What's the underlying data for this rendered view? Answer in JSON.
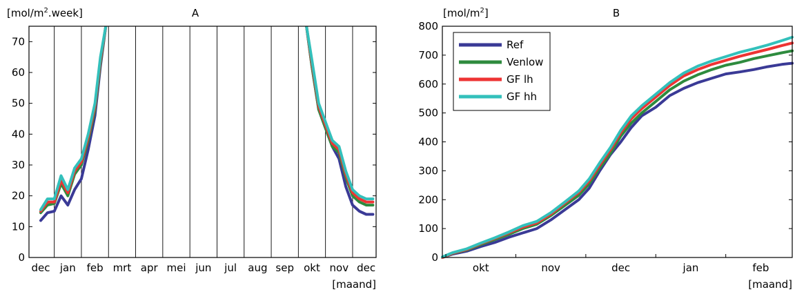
{
  "chart_data": [
    {
      "type": "line",
      "title": "A",
      "ylabel_prefix": "[mol/m",
      "ylabel_sup": "2",
      "ylabel_suffix": ".week]",
      "xlabel": "[maand]",
      "categories": [
        "dec",
        "jan",
        "feb",
        "mrt",
        "apr",
        "mei",
        "jun",
        "jul",
        "aug",
        "sep",
        "okt",
        "nov",
        "dec"
      ],
      "x_unit": "months since start of december",
      "ylim": [
        0,
        75
      ],
      "yticks": [
        0,
        10,
        20,
        30,
        40,
        50,
        60,
        70
      ],
      "grid": "vertical",
      "series": [
        {
          "color": "#3a3a96",
          "segments": [
            [
              [
                0.0,
                12
              ],
              [
                0.25,
                14.5
              ],
              [
                0.5,
                15
              ],
              [
                0.75,
                20
              ],
              [
                1.0,
                17
              ],
              [
                1.25,
                22
              ],
              [
                1.5,
                25.5
              ],
              [
                1.75,
                35
              ],
              [
                2.0,
                46
              ],
              [
                2.2,
                62
              ],
              [
                2.4,
                75
              ]
            ],
            [
              [
                9.8,
                75
              ],
              [
                10.0,
                62
              ],
              [
                10.25,
                48
              ],
              [
                10.5,
                42
              ],
              [
                10.75,
                36
              ],
              [
                11.0,
                32
              ],
              [
                11.25,
                23
              ],
              [
                11.5,
                17
              ],
              [
                11.75,
                15
              ],
              [
                12.0,
                14
              ],
              [
                12.25,
                14
              ]
            ]
          ]
        },
        {
          "color": "#2e8b3e",
          "segments": [
            [
              [
                0.0,
                14.5
              ],
              [
                0.25,
                17
              ],
              [
                0.5,
                17.5
              ],
              [
                0.75,
                24
              ],
              [
                1.0,
                20
              ],
              [
                1.25,
                27
              ],
              [
                1.5,
                30
              ],
              [
                1.75,
                38
              ],
              [
                2.0,
                48
              ],
              [
                2.2,
                63
              ],
              [
                2.4,
                75
              ]
            ],
            [
              [
                9.8,
                75
              ],
              [
                10.0,
                62
              ],
              [
                10.25,
                48
              ],
              [
                10.5,
                42
              ],
              [
                10.75,
                36
              ],
              [
                11.0,
                34
              ],
              [
                11.25,
                26
              ],
              [
                11.5,
                20
              ],
              [
                11.75,
                18
              ],
              [
                12.0,
                17
              ],
              [
                12.25,
                17
              ]
            ]
          ]
        },
        {
          "color": "#ee3333",
          "segments": [
            [
              [
                0.0,
                15
              ],
              [
                0.25,
                18
              ],
              [
                0.5,
                18
              ],
              [
                0.75,
                25
              ],
              [
                1.0,
                21
              ],
              [
                1.25,
                28
              ],
              [
                1.5,
                31
              ],
              [
                1.75,
                39
              ],
              [
                2.0,
                49
              ],
              [
                2.2,
                64
              ],
              [
                2.4,
                75
              ]
            ],
            [
              [
                9.8,
                75
              ],
              [
                10.0,
                63
              ],
              [
                10.25,
                49
              ],
              [
                10.5,
                43
              ],
              [
                10.75,
                37
              ],
              [
                11.0,
                35
              ],
              [
                11.25,
                27
              ],
              [
                11.5,
                21
              ],
              [
                11.75,
                19
              ],
              [
                12.0,
                18
              ],
              [
                12.25,
                18
              ]
            ]
          ]
        },
        {
          "color": "#33c0bb",
          "segments": [
            [
              [
                0.0,
                15.5
              ],
              [
                0.25,
                19
              ],
              [
                0.5,
                19
              ],
              [
                0.75,
                26.5
              ],
              [
                1.0,
                22
              ],
              [
                1.25,
                29
              ],
              [
                1.5,
                32
              ],
              [
                1.75,
                40
              ],
              [
                2.0,
                50
              ],
              [
                2.2,
                65
              ],
              [
                2.4,
                75
              ]
            ],
            [
              [
                9.8,
                75
              ],
              [
                10.0,
                64
              ],
              [
                10.25,
                50
              ],
              [
                10.5,
                44
              ],
              [
                10.75,
                38
              ],
              [
                11.0,
                36
              ],
              [
                11.25,
                28
              ],
              [
                11.5,
                22
              ],
              [
                11.75,
                20
              ],
              [
                12.0,
                19
              ],
              [
                12.25,
                19
              ]
            ]
          ]
        }
      ]
    },
    {
      "type": "line",
      "title": "B",
      "ylabel_prefix": "[mol/m",
      "ylabel_sup": "2",
      "ylabel_suffix": "]",
      "xlabel": "[maand]",
      "categories": [
        "okt",
        "nov",
        "dec",
        "jan",
        "feb"
      ],
      "x_unit": "months since start of september (okt at 1.5)",
      "xlim": [
        0.95,
        5.95
      ],
      "ylim": [
        0,
        800
      ],
      "yticks": [
        0,
        100,
        200,
        300,
        400,
        500,
        600,
        700,
        800
      ],
      "grid": "none",
      "legend": "top-left",
      "series": [
        {
          "name": "Ref",
          "color": "#3a3a96",
          "points": [
            [
              0.95,
              0
            ],
            [
              1.1,
              12
            ],
            [
              1.3,
              22
            ],
            [
              1.5,
              38
            ],
            [
              1.7,
              52
            ],
            [
              1.9,
              70
            ],
            [
              2.1,
              85
            ],
            [
              2.3,
              100
            ],
            [
              2.5,
              130
            ],
            [
              2.7,
              165
            ],
            [
              2.9,
              200
            ],
            [
              3.05,
              240
            ],
            [
              3.2,
              300
            ],
            [
              3.35,
              355
            ],
            [
              3.5,
              400
            ],
            [
              3.65,
              450
            ],
            [
              3.8,
              490
            ],
            [
              4.0,
              520
            ],
            [
              4.2,
              560
            ],
            [
              4.4,
              585
            ],
            [
              4.6,
              605
            ],
            [
              4.8,
              620
            ],
            [
              5.0,
              635
            ],
            [
              5.2,
              642
            ],
            [
              5.4,
              650
            ],
            [
              5.6,
              660
            ],
            [
              5.8,
              668
            ],
            [
              5.95,
              672
            ]
          ]
        },
        {
          "name": "Venlow",
          "color": "#2e8b3e",
          "points": [
            [
              0.95,
              0
            ],
            [
              1.1,
              14
            ],
            [
              1.3,
              26
            ],
            [
              1.5,
              45
            ],
            [
              1.7,
              62
            ],
            [
              1.9,
              80
            ],
            [
              2.1,
              100
            ],
            [
              2.3,
              115
            ],
            [
              2.5,
              145
            ],
            [
              2.7,
              180
            ],
            [
              2.9,
              215
            ],
            [
              3.05,
              255
            ],
            [
              3.2,
              310
            ],
            [
              3.35,
              360
            ],
            [
              3.5,
              420
            ],
            [
              3.65,
              465
            ],
            [
              3.8,
              500
            ],
            [
              4.0,
              540
            ],
            [
              4.2,
              580
            ],
            [
              4.4,
              610
            ],
            [
              4.6,
              632
            ],
            [
              4.8,
              650
            ],
            [
              5.0,
              665
            ],
            [
              5.2,
              675
            ],
            [
              5.4,
              688
            ],
            [
              5.6,
              698
            ],
            [
              5.8,
              708
            ],
            [
              5.95,
              715
            ]
          ]
        },
        {
          "name": "GF lh",
          "color": "#ee3333",
          "points": [
            [
              0.95,
              0
            ],
            [
              1.1,
              15
            ],
            [
              1.3,
              28
            ],
            [
              1.5,
              48
            ],
            [
              1.7,
              66
            ],
            [
              1.9,
              85
            ],
            [
              2.1,
              105
            ],
            [
              2.3,
              120
            ],
            [
              2.5,
              150
            ],
            [
              2.7,
              188
            ],
            [
              2.9,
              225
            ],
            [
              3.05,
              265
            ],
            [
              3.2,
              320
            ],
            [
              3.35,
              372
            ],
            [
              3.5,
              432
            ],
            [
              3.65,
              480
            ],
            [
              3.8,
              515
            ],
            [
              4.0,
              555
            ],
            [
              4.2,
              595
            ],
            [
              4.4,
              628
            ],
            [
              4.6,
              650
            ],
            [
              4.8,
              668
            ],
            [
              5.0,
              682
            ],
            [
              5.2,
              696
            ],
            [
              5.4,
              708
            ],
            [
              5.6,
              720
            ],
            [
              5.8,
              733
            ],
            [
              5.95,
              742
            ]
          ]
        },
        {
          "name": "GF hh",
          "color": "#33c0bb",
          "points": [
            [
              0.95,
              2
            ],
            [
              1.1,
              17
            ],
            [
              1.3,
              30
            ],
            [
              1.5,
              50
            ],
            [
              1.7,
              68
            ],
            [
              1.9,
              88
            ],
            [
              2.1,
              110
            ],
            [
              2.3,
              125
            ],
            [
              2.5,
              155
            ],
            [
              2.7,
              192
            ],
            [
              2.9,
              230
            ],
            [
              3.05,
              272
            ],
            [
              3.2,
              328
            ],
            [
              3.35,
              380
            ],
            [
              3.5,
              440
            ],
            [
              3.65,
              490
            ],
            [
              3.8,
              525
            ],
            [
              4.0,
              565
            ],
            [
              4.2,
              605
            ],
            [
              4.4,
              638
            ],
            [
              4.6,
              662
            ],
            [
              4.8,
              680
            ],
            [
              5.0,
              695
            ],
            [
              5.2,
              710
            ],
            [
              5.4,
              722
            ],
            [
              5.6,
              735
            ],
            [
              5.8,
              750
            ],
            [
              5.95,
              762
            ]
          ]
        }
      ]
    }
  ]
}
